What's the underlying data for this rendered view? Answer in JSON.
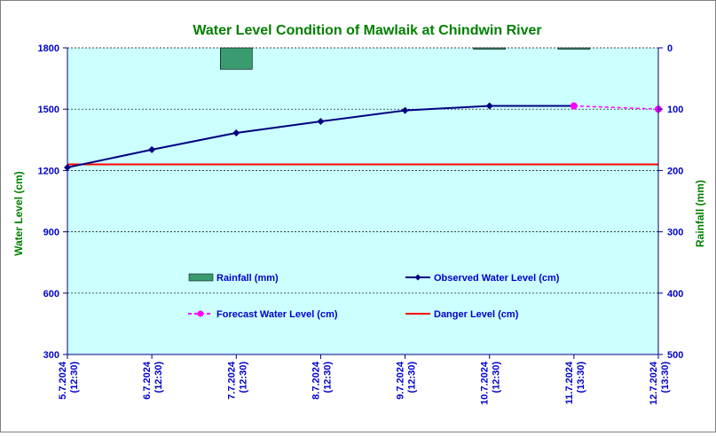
{
  "chart_data": {
    "type": "line",
    "title": "Water Level Condition of Mawlaik at Chindwin River",
    "ylabel": "Water Level (cm)",
    "y2label": "Rainfall (mm)",
    "ylim": [
      300,
      1800
    ],
    "yticks": [
      "300",
      "600",
      "900",
      "1200",
      "1500",
      "1800"
    ],
    "y2lim": [
      0,
      500
    ],
    "y2_inverted": true,
    "y2ticks": [
      "0",
      "100",
      "200",
      "300",
      "400",
      "500"
    ],
    "categories": [
      "5.7.2024 (12:30)",
      "6.7.2024 (12:30)",
      "7.7.2024 (12:30)",
      "8.7.2024 (12:30)",
      "9.7.2024 (12:30)",
      "10.7.2024 (12:30)",
      "11.7.2024 (13:30)",
      "12.7.2024 (13:30)"
    ],
    "category_lines": [
      [
        "5.7.2024",
        "(12:30)"
      ],
      [
        "6.7.2024",
        "(12:30)"
      ],
      [
        "7.7.2024",
        "(12:30)"
      ],
      [
        "8.7.2024",
        "(12:30)"
      ],
      [
        "9.7.2024",
        "(12:30)"
      ],
      [
        "10.7.2024",
        "(12:30)"
      ],
      [
        "11.7.2024",
        "(13:30)"
      ],
      [
        "12.7.2024",
        "(13:30)"
      ]
    ],
    "grid": true,
    "legend_position": "center",
    "series": [
      {
        "name": "Rainfall (mm)",
        "type": "bar",
        "axis": "right",
        "color": "#3a9b6e",
        "values": [
          0,
          0,
          35,
          0,
          0,
          2,
          2,
          null
        ]
      },
      {
        "name": "Observed Water Level (cm)",
        "type": "line",
        "axis": "left",
        "color": "#000080",
        "marker": "diamond",
        "values": [
          1215,
          1302,
          1384,
          1440,
          1494,
          1516,
          1516,
          null
        ]
      },
      {
        "name": "Forecast Water Level (cm)",
        "type": "line",
        "axis": "left",
        "color": "#ff00ff",
        "dashed": true,
        "marker": "circle",
        "values": [
          null,
          null,
          null,
          null,
          null,
          null,
          1516,
          1500
        ]
      },
      {
        "name": "Danger Level (cm)",
        "type": "line",
        "axis": "left",
        "color": "#ff0000",
        "values": [
          1230,
          1230,
          1230,
          1230,
          1230,
          1230,
          1230,
          1230
        ]
      }
    ]
  },
  "colors": {
    "plot_background": "#ccffff",
    "title": "#008000",
    "axis_text": "#0000cc",
    "right_label": "#008000",
    "axis_line": "#000080"
  }
}
